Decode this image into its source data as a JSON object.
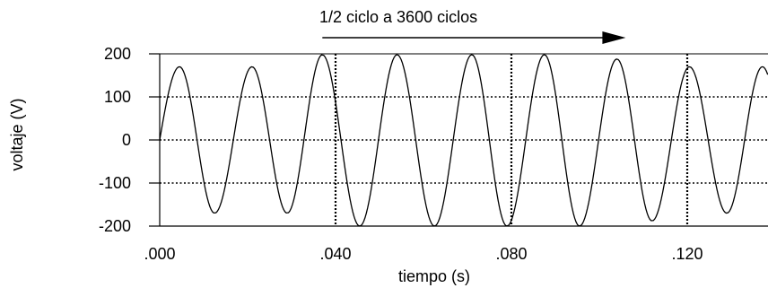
{
  "chart_data": {
    "type": "line",
    "title": "",
    "xlabel": "tiempo (s)",
    "ylabel": "voltaje (V)",
    "xlim": [
      0,
      0.13
    ],
    "ylim": [
      -200,
      200
    ],
    "xticks": [
      0.0,
      0.04,
      0.08,
      0.12
    ],
    "xtick_labels": [
      ".000",
      ".040",
      ".080",
      ".120"
    ],
    "yticks": [
      200,
      100,
      0,
      -100,
      -200
    ],
    "ytick_labels": [
      "200",
      "100",
      "0",
      "-100",
      "-200"
    ],
    "grid": "dotted lines at y = 100, 0, -100 and at x = .040, .080, .120",
    "annotation": {
      "text": "1/2 ciclo a 3600 ciclos",
      "arrow_from": 0.037,
      "arrow_to": 0.106
    },
    "series": [
      {
        "frequency_hz": 60,
        "peaks": [
          {
            "t": 0.0045,
            "v": 170
          },
          {
            "t": 0.0125,
            "v": -170
          },
          {
            "t": 0.021,
            "v": 170
          },
          {
            "t": 0.029,
            "v": -170
          },
          {
            "t": 0.037,
            "v": 198
          },
          {
            "t": 0.0455,
            "v": -200
          },
          {
            "t": 0.054,
            "v": 198
          },
          {
            "t": 0.0625,
            "v": -200
          },
          {
            "t": 0.071,
            "v": 198
          },
          {
            "t": 0.079,
            "v": -200
          },
          {
            "t": 0.0875,
            "v": 198
          },
          {
            "t": 0.0955,
            "v": -200
          },
          {
            "t": 0.104,
            "v": 188
          },
          {
            "t": 0.112,
            "v": -188
          },
          {
            "t": 0.1205,
            "v": 170
          },
          {
            "t": 0.129,
            "v": -170
          }
        ],
        "color": "#000000"
      }
    ]
  }
}
